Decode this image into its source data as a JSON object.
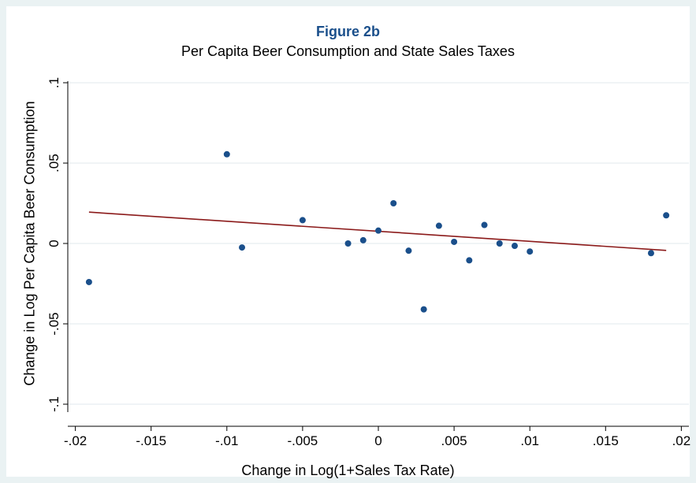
{
  "chart_data": {
    "type": "scatter",
    "title": "Figure 2b",
    "subtitle": "Per Capita Beer Consumption and State Sales Taxes",
    "xlabel": "Change in Log(1+Sales Tax Rate)",
    "ylabel": "Change in Log Per Capita Beer Consumption",
    "xlim": [
      -0.0205,
      0.0205
    ],
    "ylim": [
      -0.1,
      0.1
    ],
    "x_ticks": [
      -0.02,
      -0.015,
      -0.01,
      -0.005,
      0,
      0.005,
      0.01,
      0.015,
      0.02
    ],
    "x_tick_labels": [
      "-.02",
      "-.015",
      "-.01",
      "-.005",
      "0",
      ".005",
      ".01",
      ".015",
      ".02"
    ],
    "y_ticks": [
      -0.1,
      -0.05,
      0,
      0.05,
      0.1
    ],
    "y_tick_labels": [
      "-.1",
      "-.05",
      "0",
      ".05",
      ".1"
    ],
    "grid": true,
    "colors": {
      "points": "#1a4f8b",
      "fit_line": "#8b1a1a",
      "title": "#1a4f8b",
      "grid": "#e6eef0"
    },
    "series": [
      {
        "kind": "scatter",
        "points": [
          {
            "x": -0.0191,
            "y": -0.024
          },
          {
            "x": -0.01,
            "y": 0.0555
          },
          {
            "x": -0.009,
            "y": -0.0025
          },
          {
            "x": -0.005,
            "y": 0.0145
          },
          {
            "x": -0.002,
            "y": 0.0
          },
          {
            "x": -0.001,
            "y": 0.002
          },
          {
            "x": 0.0,
            "y": 0.008
          },
          {
            "x": 0.001,
            "y": 0.025
          },
          {
            "x": 0.002,
            "y": -0.0045
          },
          {
            "x": 0.003,
            "y": -0.041
          },
          {
            "x": 0.004,
            "y": 0.011
          },
          {
            "x": 0.005,
            "y": 0.001
          },
          {
            "x": 0.006,
            "y": -0.0105
          },
          {
            "x": 0.007,
            "y": 0.0115
          },
          {
            "x": 0.008,
            "y": 0.0
          },
          {
            "x": 0.009,
            "y": -0.0015
          },
          {
            "x": 0.01,
            "y": -0.005
          },
          {
            "x": 0.018,
            "y": -0.006
          },
          {
            "x": 0.019,
            "y": 0.0175
          }
        ]
      },
      {
        "kind": "line",
        "points": [
          {
            "x": -0.0191,
            "y": 0.0195
          },
          {
            "x": 0.019,
            "y": -0.0043
          }
        ]
      }
    ]
  }
}
